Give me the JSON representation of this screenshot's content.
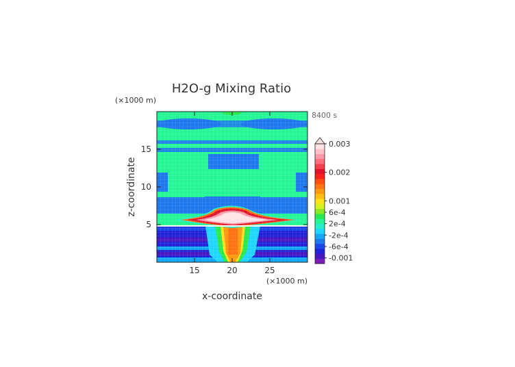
{
  "chart_data": {
    "type": "heatmap",
    "title": "H2O-g Mixing Ratio",
    "xlabel": "x-coordinate",
    "ylabel": "z-coordinate",
    "x_unit": "(×1000 m)",
    "y_unit": "(×1000 m)",
    "time_label": "8400 s",
    "xlim": [
      10,
      30
    ],
    "ylim": [
      0,
      20
    ],
    "x_ticks": [
      15,
      20,
      25
    ],
    "y_ticks": [
      5,
      10,
      15
    ],
    "colorbar": {
      "labels": [
        "0.003",
        "0.002",
        "0.001",
        "6e-4",
        "2e-4",
        "-2e-4",
        "-6e-4",
        "-0.001"
      ],
      "label_values": [
        0.003,
        0.002,
        0.001,
        0.0006,
        0.0002,
        -0.0002,
        -0.0006,
        -0.001
      ],
      "range": [
        -0.0012,
        0.003
      ],
      "extend_max": true,
      "colors": [
        "#7a1fb8",
        "#4a18c0",
        "#2222d8",
        "#1b48e6",
        "#1e78ee",
        "#14a7f5",
        "#1fd6ff",
        "#23f0c8",
        "#25f595",
        "#28e94f",
        "#8ae824",
        "#d7f020",
        "#ffe31a",
        "#ffbe14",
        "#ff9911",
        "#ff7410",
        "#ff4c12",
        "#f8201a",
        "#e3122b",
        "#f2404f",
        "#ff6e7e",
        "#ff98a6",
        "#ffc0c8",
        "#ffe2e6"
      ]
    },
    "field_regions": [
      {
        "region": "upper domain",
        "z_range": [
          8,
          20
        ],
        "approx_value": -0.0002
      },
      {
        "region": "cloud anvil",
        "x_range": [
          12,
          29
        ],
        "z_range": [
          5.2,
          7.2
        ],
        "approx_value": 0.0025
      },
      {
        "region": "updraft column",
        "x_range": [
          18,
          22
        ],
        "z_range": [
          0,
          5
        ],
        "approx_value": 0.001
      },
      {
        "region": "lower layer",
        "z_range": [
          0,
          5
        ],
        "approx_value": -0.0008
      }
    ]
  }
}
